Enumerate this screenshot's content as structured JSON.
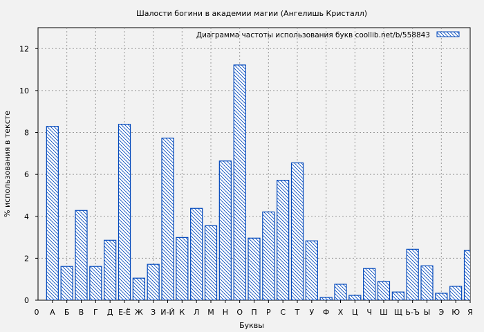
{
  "chart_data": {
    "type": "bar",
    "title": "Шалости богини в академии магии (Ангелишь Кристалл)",
    "xlabel": "Буквы",
    "ylabel": "% использования в тексте",
    "legend": {
      "label": "Диаграмма частоты использования букв  coollib.net/b/558843",
      "placement": "top-right"
    },
    "x_origin_label": "0",
    "categories": [
      "А",
      "Б",
      "В",
      "Г",
      "Д",
      "Е-Ё",
      "Ж",
      "З",
      "И-Й",
      "К",
      "Л",
      "М",
      "Н",
      "О",
      "П",
      "Р",
      "С",
      "Т",
      "У",
      "Ф",
      "Х",
      "Ц",
      "Ч",
      "Ш",
      "Щ",
      "Ь-Ъ",
      "Ы",
      "Э",
      "Ю",
      "Я"
    ],
    "values": [
      8.29,
      1.61,
      4.28,
      1.61,
      2.86,
      8.39,
      1.05,
      1.71,
      7.73,
      2.99,
      4.38,
      3.55,
      6.64,
      11.22,
      2.96,
      4.21,
      5.72,
      6.55,
      2.83,
      0.13,
      0.76,
      0.23,
      1.51,
      0.89,
      0.39,
      2.43,
      1.64,
      0.33,
      0.66,
      2.37
    ],
    "ylim": [
      0,
      13
    ],
    "yticks": [
      0,
      2,
      4,
      6,
      8,
      10,
      12
    ],
    "grid": true,
    "bar_color": "#0047bb",
    "fill_pattern": "diagonal-hatch"
  }
}
